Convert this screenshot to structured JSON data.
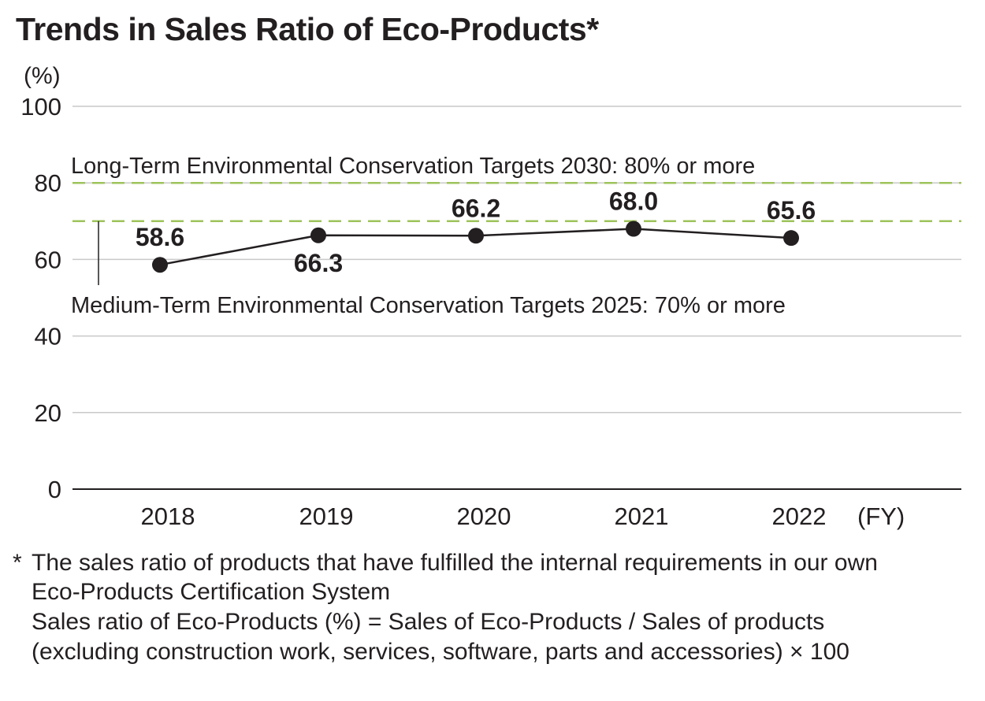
{
  "chart_data": {
    "type": "line",
    "title": "Trends in Sales Ratio of Eco-Products*",
    "ylabel": "(%)",
    "xlabel": "(FY)",
    "ylim": [
      0,
      100
    ],
    "yticks": [
      "100",
      "80",
      "60",
      "40",
      "20",
      "0"
    ],
    "categories": [
      "2018",
      "2019",
      "2020",
      "2021",
      "2022"
    ],
    "series": [
      {
        "values": [
          58.6,
          66.3,
          66.2,
          68.0,
          65.6
        ]
      }
    ],
    "data_labels": [
      "58.6",
      "66.3",
      "66.2",
      "68.0",
      "65.6"
    ],
    "reference_lines": [
      {
        "value": 80,
        "label": "Long-Term Environmental Conservation Targets 2030: 80% or more"
      },
      {
        "value": 70,
        "label": "Medium-Term Environmental Conservation Targets 2025: 70% or more"
      }
    ],
    "grid": true,
    "colors": {
      "line": "#231f20",
      "marker": "#231f20",
      "target": "#9dc35a",
      "grid": "#c9c9c9"
    }
  },
  "footnote": {
    "marker": "*",
    "line1": "The sales ratio of products that have fulfilled the internal requirements in our own",
    "line2": "Eco-Products Certification System",
    "line3": "Sales ratio of Eco-Products (%) = Sales of Eco-Products / Sales of products",
    "line4": "(excluding construction work, services, software, parts and accessories) × 100"
  }
}
